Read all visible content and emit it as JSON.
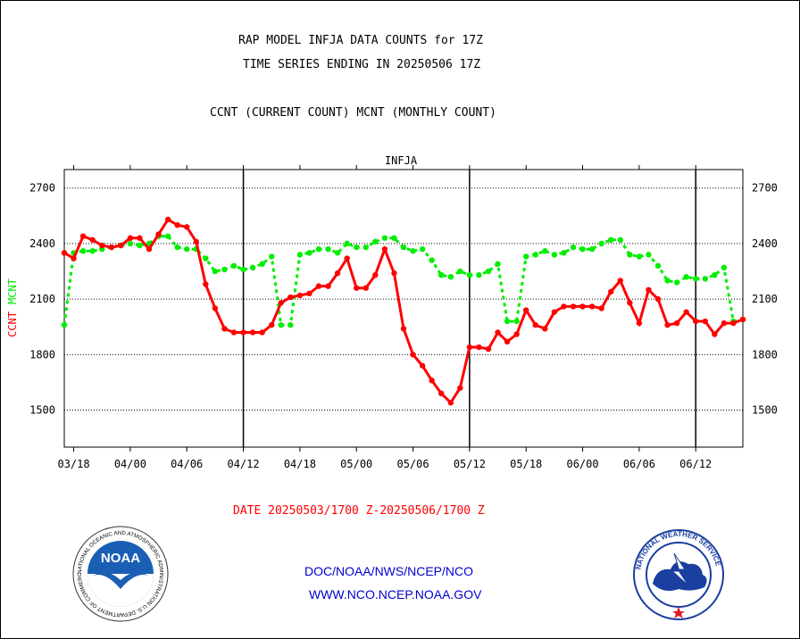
{
  "header": {
    "title_line1": "RAP MODEL INFJA DATA COUNTS for 17Z",
    "title_line2": "TIME SERIES ENDING IN 20250506 17Z",
    "subtitle": "CCNT (CURRENT COUNT) MCNT (MONTHLY COUNT)"
  },
  "footer": {
    "date_range": "DATE 20250503/1700 Z-20250506/1700 Z",
    "org": "DOC/NOAA/NWS/NCEP/NCO",
    "website": "WWW.NCO.NCEP.NOAA.GOV",
    "noaa_logo_text": "NOAA",
    "noaa_ring_text": "NATIONAL OCEANIC AND ATMOSPHERIC ADMINISTRATION U.S. DEPARTMENT OF COMMERCE",
    "nws_ring_text": "NATIONAL WEATHER SERVICE"
  },
  "colors": {
    "ccnt": "#ff0000",
    "mcnt": "#00ee00",
    "station": "#0000ff",
    "grid": "#000000"
  },
  "chart_data": {
    "type": "line",
    "title": "INFJA",
    "ylabel_left": [
      "CCNT",
      "MCNT"
    ],
    "ylim": [
      1300,
      2800
    ],
    "yticks": [
      1500,
      1800,
      2100,
      2400,
      2700
    ],
    "xticks": [
      "03/18",
      "04/00",
      "04/06",
      "04/12",
      "04/18",
      "05/00",
      "05/06",
      "05/12",
      "05/18",
      "06/00",
      "06/06",
      "06/12"
    ],
    "x_tick_positions": [
      1,
      7,
      13,
      19,
      25,
      31,
      37,
      43,
      49,
      55,
      61,
      67
    ],
    "day_boundaries": [
      19,
      43,
      67
    ],
    "grid": "horizontal dotted",
    "x": [
      0,
      1,
      2,
      3,
      4,
      5,
      6,
      7,
      8,
      9,
      10,
      11,
      12,
      13,
      14,
      15,
      16,
      17,
      18,
      19,
      20,
      21,
      22,
      23,
      24,
      25,
      26,
      27,
      28,
      29,
      30,
      31,
      32,
      33,
      34,
      35,
      36,
      37,
      38,
      39,
      40,
      41,
      42,
      43,
      44,
      45,
      46,
      47,
      48,
      49,
      50,
      51,
      52,
      53,
      54,
      55,
      56,
      57,
      58,
      59,
      60,
      61,
      62,
      63,
      64,
      65,
      66,
      67,
      68,
      69,
      70,
      71,
      72
    ],
    "series": [
      {
        "name": "CCNT",
        "values": [
          2350,
          2320,
          2440,
          2420,
          2390,
          2380,
          2390,
          2430,
          2430,
          2370,
          2450,
          2530,
          2500,
          2490,
          2410,
          2180,
          2050,
          1940,
          1920,
          1920,
          1920,
          1920,
          1960,
          2080,
          2110,
          2120,
          2130,
          2170,
          2170,
          2240,
          2320,
          2160,
          2160,
          2230,
          2370,
          2240,
          1940,
          1800,
          1740,
          1660,
          1590,
          1540,
          1620,
          1840,
          1840,
          1830,
          1920,
          1870,
          1910,
          2040,
          1960,
          1940,
          2030,
          2060,
          2060,
          2060,
          2060,
          2050,
          2140,
          2200,
          2080,
          1970,
          2150,
          2100,
          1960,
          1970,
          2030,
          1980,
          1980,
          1910,
          1970,
          1970,
          1990
        ]
      },
      {
        "name": "MCNT",
        "values": [
          1960,
          2350,
          2360,
          2360,
          2370,
          2380,
          2390,
          2400,
          2390,
          2400,
          2440,
          2440,
          2380,
          2370,
          2370,
          2320,
          2250,
          2260,
          2280,
          2260,
          2270,
          2290,
          2330,
          1960,
          1960,
          2340,
          2350,
          2370,
          2370,
          2350,
          2400,
          2380,
          2380,
          2410,
          2430,
          2430,
          2380,
          2360,
          2370,
          2310,
          2230,
          2220,
          2250,
          2230,
          2230,
          2250,
          2290,
          1980,
          1980,
          2330,
          2340,
          2360,
          2340,
          2350,
          2380,
          2370,
          2370,
          2400,
          2420,
          2420,
          2340,
          2330,
          2340,
          2280,
          2200,
          2190,
          2220,
          2210,
          2210,
          2230,
          2270,
          1980,
          1990
        ]
      }
    ],
    "legend": "none"
  }
}
